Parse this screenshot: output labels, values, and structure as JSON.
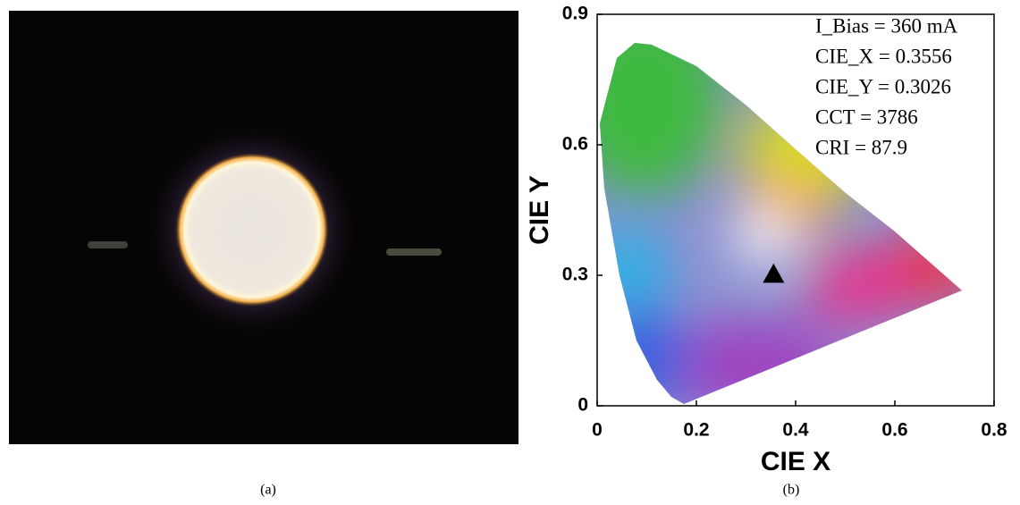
{
  "chart_data": {
    "type": "scatter",
    "xlabel": "CIE X",
    "ylabel": "CIE Y",
    "x": [
      0.3556
    ],
    "values": [
      0.3026
    ],
    "color": "#000000",
    "marker": "triangle",
    "xlim": [
      0,
      0.8
    ],
    "ylim": [
      0,
      0.9
    ],
    "xticks": [
      0,
      0.2,
      0.4,
      0.6,
      0.8
    ],
    "yticks": [
      0,
      0.3,
      0.6,
      0.9
    ],
    "annotations": [
      "I_Bias = 360 mA",
      "CIE_X = 0.3556",
      "CIE_Y = 0.3026",
      "CCT = 3786",
      "CRI = 87.9"
    ]
  },
  "captions": [
    "(a)",
    "(b)"
  ]
}
